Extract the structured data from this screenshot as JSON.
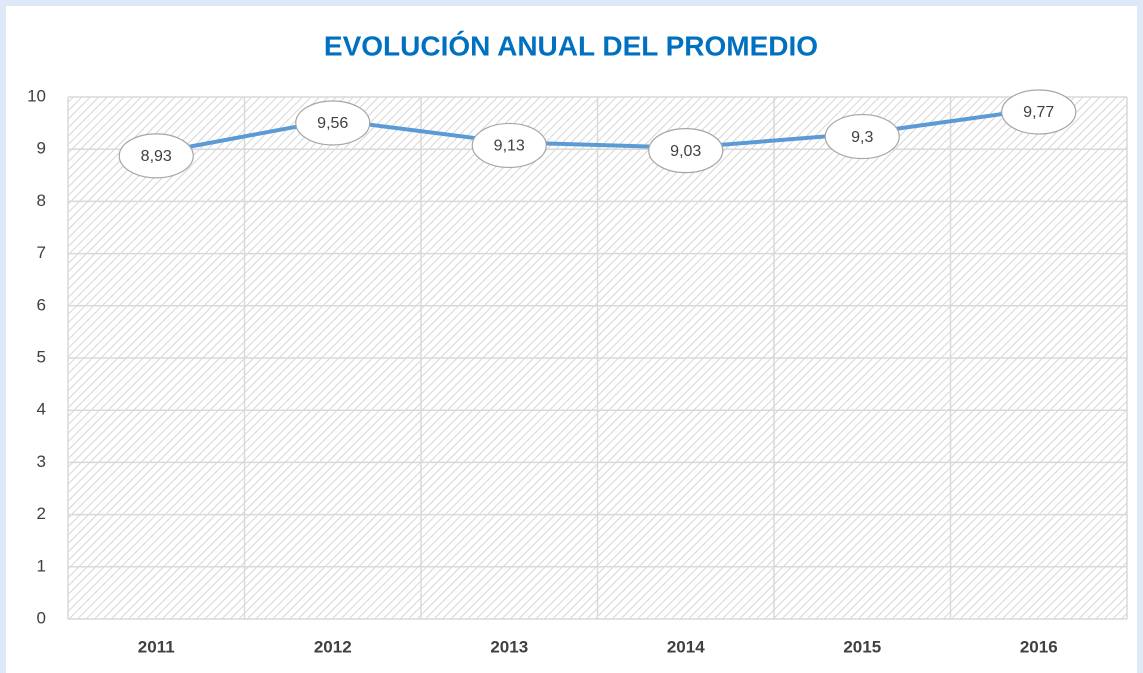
{
  "chart_data": {
    "type": "line",
    "title": "EVOLUCIÓN ANUAL DEL PROMEDIO",
    "categories": [
      "2011",
      "2012",
      "2013",
      "2014",
      "2015",
      "2016"
    ],
    "values": [
      8.93,
      9.56,
      9.13,
      9.03,
      9.3,
      9.77
    ],
    "value_labels": [
      "8,93",
      "9,56",
      "9,13",
      "9,03",
      "9,3",
      "9,77"
    ],
    "color": "#5b9bd5",
    "ylim": [
      0,
      10
    ],
    "yticks": [
      0,
      1,
      2,
      3,
      4,
      5,
      6,
      7,
      8,
      9,
      10
    ],
    "grid": true
  }
}
